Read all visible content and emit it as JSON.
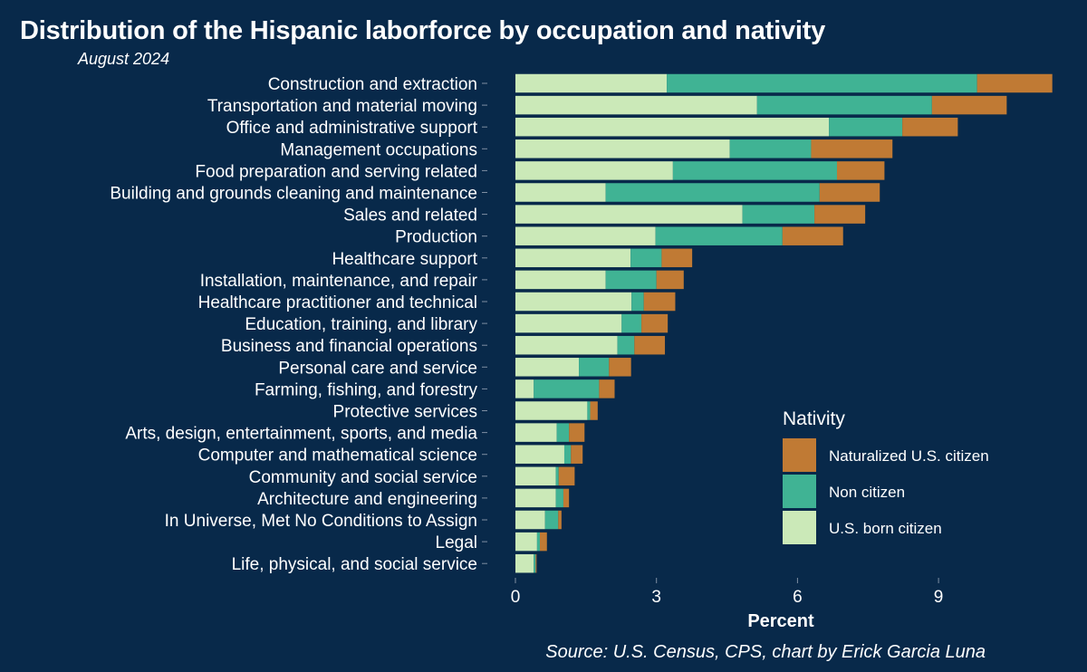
{
  "title": "Distribution of the Hispanic laborforce by occupation and nativity",
  "subtitle": "August 2024",
  "caption": "Source: U.S. Census, CPS, chart by Erick Garcia Luna",
  "chart_data": {
    "type": "bar",
    "orientation": "horizontal",
    "stacked": true,
    "xlabel": "Percent",
    "ylabel": "",
    "xlim": [
      0,
      10.5
    ],
    "xticks": [
      0,
      3,
      6,
      9
    ],
    "grid": false,
    "legend": {
      "title": "Nativity",
      "position": "right"
    },
    "categories": [
      "Construction and extraction",
      "Transportation and material moving",
      "Office and administrative support",
      "Management occupations",
      "Food preparation and serving related",
      "Building and grounds cleaning and maintenance",
      "Sales and related",
      "Production",
      "Healthcare support",
      "Installation, maintenance, and repair",
      "Healthcare practitioner and technical",
      "Education, training, and library",
      "Business and financial operations",
      "Personal care and service",
      "Farming, fishing, and forestry",
      "Protective services",
      "Arts, design, entertainment, sports, and media",
      "Computer and mathematical science",
      "Community and social service",
      "Architecture and engineering",
      "In Universe, Met No Conditions to Assign",
      "Legal",
      "Life, physical, and social service"
    ],
    "series": [
      {
        "name": "U.S. born citizen",
        "color": "#cbe9b8",
        "values": [
          3.22,
          5.14,
          6.67,
          4.56,
          3.35,
          1.92,
          4.83,
          2.98,
          2.45,
          1.92,
          2.47,
          2.26,
          2.17,
          1.35,
          0.39,
          1.53,
          0.88,
          1.04,
          0.86,
          0.86,
          0.63,
          0.46,
          0.39
        ]
      },
      {
        "name": "Non citizen",
        "color": "#40b394",
        "values": [
          6.6,
          3.72,
          1.56,
          1.73,
          3.49,
          4.55,
          1.53,
          2.7,
          0.66,
          1.08,
          0.26,
          0.42,
          0.36,
          0.64,
          1.39,
          0.06,
          0.26,
          0.14,
          0.06,
          0.16,
          0.28,
          0.06,
          0.04
        ]
      },
      {
        "name": "Naturalized U.S. citizen",
        "color": "#c07a34",
        "values": [
          1.6,
          1.59,
          1.18,
          1.73,
          1.01,
          1.28,
          1.08,
          1.29,
          0.65,
          0.58,
          0.67,
          0.56,
          0.65,
          0.47,
          0.33,
          0.16,
          0.33,
          0.25,
          0.34,
          0.12,
          0.07,
          0.15,
          0.02
        ]
      }
    ],
    "legend_order": [
      "Naturalized U.S. citizen",
      "Non citizen",
      "U.S. born citizen"
    ]
  }
}
